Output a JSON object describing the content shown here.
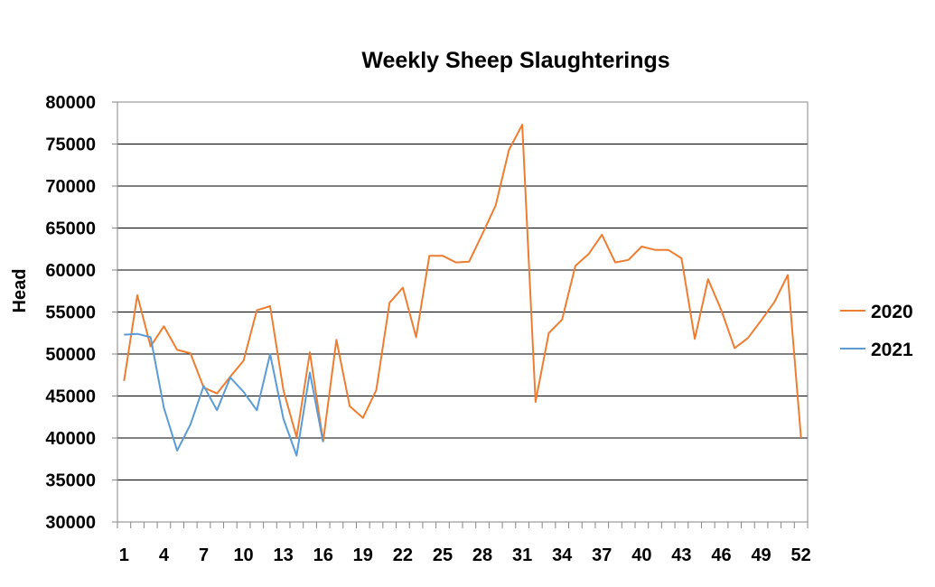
{
  "chart_data": {
    "type": "line",
    "title": "Weekly Sheep Slaughterings",
    "xlabel": "",
    "ylabel": "Head",
    "ylim": [
      30000,
      80000
    ],
    "xlim": [
      1,
      53
    ],
    "y_ticks": [
      30000,
      35000,
      40000,
      45000,
      50000,
      55000,
      60000,
      65000,
      70000,
      75000,
      80000
    ],
    "x_tick_labels": [
      1,
      4,
      7,
      10,
      13,
      16,
      19,
      22,
      25,
      28,
      31,
      34,
      37,
      40,
      43,
      46,
      49,
      52
    ],
    "grid": "horizontal",
    "legend_position": "right",
    "series": [
      {
        "name": "2020",
        "color": "#ED7D31",
        "x": [
          1,
          2,
          3,
          4,
          5,
          6,
          7,
          8,
          9,
          10,
          11,
          12,
          13,
          14,
          15,
          16,
          17,
          18,
          19,
          20,
          21,
          22,
          23,
          24,
          25,
          26,
          27,
          28,
          29,
          30,
          31,
          32,
          33,
          34,
          35,
          36,
          37,
          38,
          39,
          40,
          41,
          42,
          43,
          44,
          45,
          46,
          47,
          48,
          49,
          50,
          51,
          52
        ],
        "values": [
          46800,
          57000,
          50900,
          53300,
          50500,
          50100,
          46000,
          45300,
          47300,
          49200,
          55200,
          55700,
          45700,
          40100,
          50200,
          39600,
          51700,
          43800,
          42400,
          45700,
          56100,
          57900,
          52000,
          61700,
          61700,
          60900,
          61000,
          64300,
          67700,
          74300,
          77300,
          44300,
          52500,
          54100,
          60500,
          61900,
          64200,
          60900,
          61200,
          62800,
          62400,
          62400,
          61400,
          51800,
          58900,
          55200,
          50700,
          51900,
          54000,
          56200,
          59400,
          40000
        ]
      },
      {
        "name": "2021",
        "color": "#5B9BD5",
        "x": [
          1,
          2,
          3,
          4,
          5,
          6,
          7,
          8,
          9,
          10,
          11,
          12,
          13,
          14,
          15,
          16
        ],
        "values": [
          52300,
          52400,
          52000,
          43600,
          38500,
          41600,
          46200,
          43300,
          47200,
          45500,
          43300,
          50000,
          42300,
          37900,
          47800,
          39500
        ]
      }
    ]
  }
}
